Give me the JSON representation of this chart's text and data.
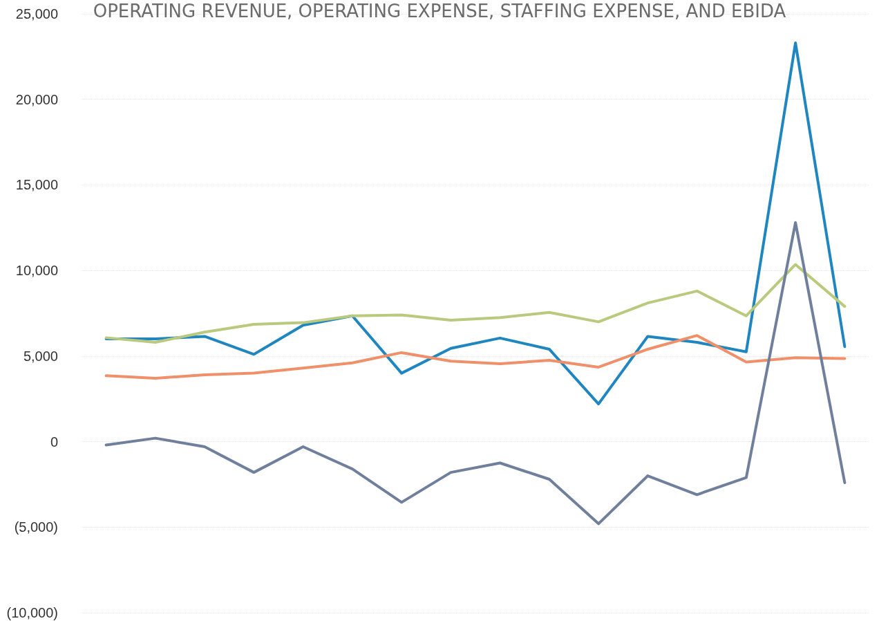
{
  "chart_data": {
    "type": "line",
    "title": "OPERATING REVENUE, OPERATING EXPENSE, STAFFING EXPENSE, AND EBIDA",
    "categories": [
      null,
      null,
      null,
      null,
      null,
      null,
      null,
      null,
      null,
      null,
      null,
      null,
      null,
      null,
      null,
      null
    ],
    "series": [
      {
        "color": "#1f86c0",
        "values": [
          6000,
          6000,
          6150,
          5100,
          6800,
          7350,
          4000,
          5450,
          6050,
          5400,
          2200,
          6150,
          5800,
          5250,
          23300,
          5550
        ]
      },
      {
        "color": "#b9c97e",
        "values": [
          6070,
          5800,
          6400,
          6850,
          6950,
          7350,
          7400,
          7100,
          7250,
          7550,
          7000,
          8100,
          8800,
          7350,
          10350,
          7900
        ]
      },
      {
        "color": "#f0906a",
        "values": [
          3850,
          3700,
          3900,
          4000,
          4300,
          4600,
          5200,
          4700,
          4550,
          4750,
          4350,
          5400,
          6200,
          4650,
          4900,
          4850
        ]
      },
      {
        "color": "#6f7f9c",
        "values": [
          -200,
          200,
          -300,
          -1800,
          -300,
          -1600,
          -3550,
          -1800,
          -1250,
          -2200,
          -4800,
          -2000,
          -3100,
          -2100,
          12800,
          -2400
        ]
      }
    ],
    "ylim": [
      -10000,
      25000
    ],
    "yticks": [
      {
        "value": -10000,
        "label": "(10,000)"
      },
      {
        "value": -5000,
        "label": "(5,000)"
      },
      {
        "value": 0,
        "label": "0"
      },
      {
        "value": 5000,
        "label": "5,000"
      },
      {
        "value": 10000,
        "label": "10,000"
      },
      {
        "value": 15000,
        "label": "15,000"
      },
      {
        "value": 20000,
        "label": "20,000"
      },
      {
        "value": 25000,
        "label": "25,000"
      }
    ],
    "grid": "y",
    "marker": "none",
    "line_style": "solid",
    "tick_labels": "y"
  }
}
